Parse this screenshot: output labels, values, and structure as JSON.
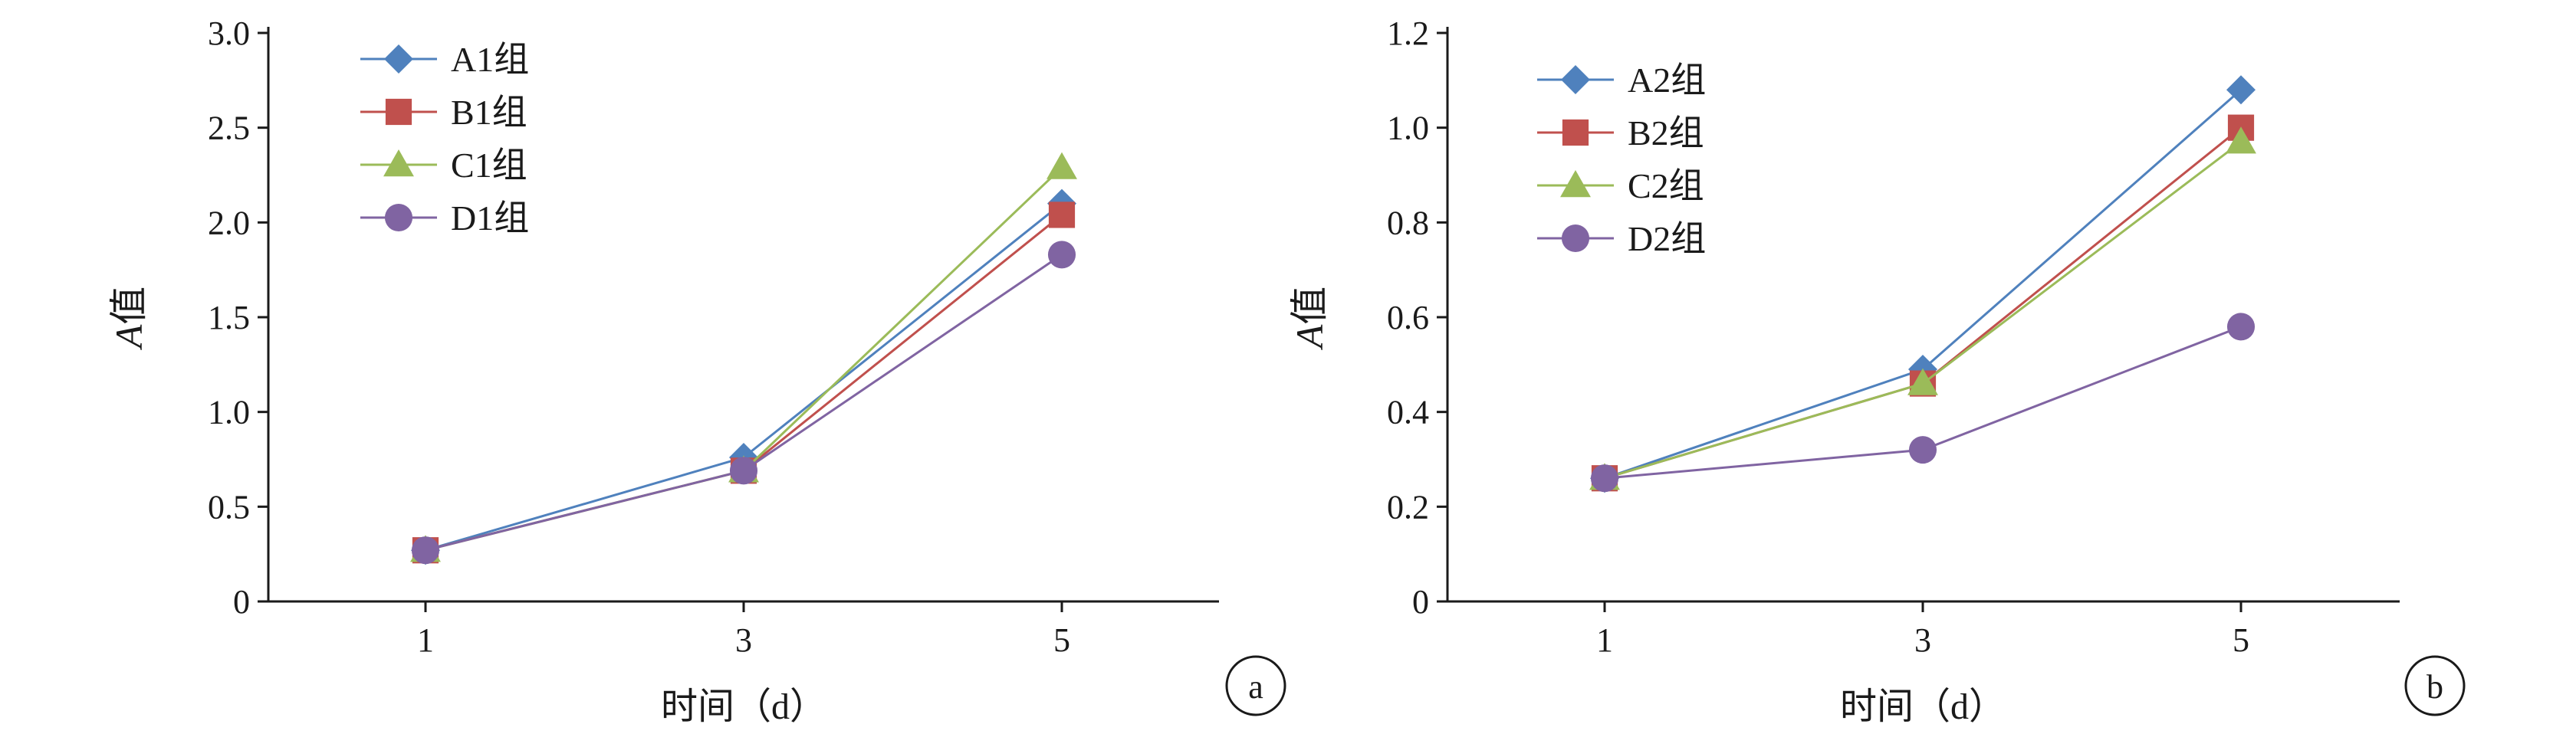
{
  "chart_data": [
    {
      "type": "line",
      "x": [
        1,
        3,
        5
      ],
      "xticks": [
        "1",
        "3",
        "5"
      ],
      "xlabel": "时间（d）",
      "ylabel_italic": "A",
      "ylabel_rest": "值",
      "ylim": [
        0,
        3.0
      ],
      "yticks": [
        "0",
        "0.5",
        "1.0",
        "1.5",
        "2.0",
        "2.5",
        "3.0"
      ],
      "ytick_values": [
        0,
        0.5,
        1.0,
        1.5,
        2.0,
        2.5,
        3.0
      ],
      "legend_position": "top-left",
      "panel_label": "a",
      "series": [
        {
          "name": "A1组",
          "values": [
            0.27,
            0.76,
            2.1
          ],
          "marker": "diamond",
          "color": "#4F81BD"
        },
        {
          "name": "B1组",
          "values": [
            0.27,
            0.69,
            2.04
          ],
          "marker": "square",
          "color": "#C0504D"
        },
        {
          "name": "C1组",
          "values": [
            0.27,
            0.69,
            2.29
          ],
          "marker": "triangle",
          "color": "#9BBB59"
        },
        {
          "name": "D1组",
          "values": [
            0.27,
            0.69,
            1.83
          ],
          "marker": "circle",
          "color": "#8064A2"
        }
      ]
    },
    {
      "type": "line",
      "x": [
        1,
        3,
        5
      ],
      "xticks": [
        "1",
        "3",
        "5"
      ],
      "xlabel": "时间（d）",
      "ylabel_italic": "A",
      "ylabel_rest": "值",
      "ylim": [
        0,
        1.2
      ],
      "yticks": [
        "0",
        "0.2",
        "0.4",
        "0.6",
        "0.8",
        "1.0",
        "1.2"
      ],
      "ytick_values": [
        0,
        0.2,
        0.4,
        0.6,
        0.8,
        1.0,
        1.2
      ],
      "legend_position": "top-left",
      "panel_label": "b",
      "series": [
        {
          "name": "A2组",
          "values": [
            0.26,
            0.49,
            1.08
          ],
          "marker": "diamond",
          "color": "#4F81BD"
        },
        {
          "name": "B2组",
          "values": [
            0.26,
            0.46,
            1.0
          ],
          "marker": "square",
          "color": "#C0504D"
        },
        {
          "name": "C2组",
          "values": [
            0.26,
            0.46,
            0.97
          ],
          "marker": "triangle",
          "color": "#9BBB59"
        },
        {
          "name": "D2组",
          "values": [
            0.26,
            0.32,
            0.58
          ],
          "marker": "circle",
          "color": "#8064A2"
        }
      ]
    }
  ]
}
